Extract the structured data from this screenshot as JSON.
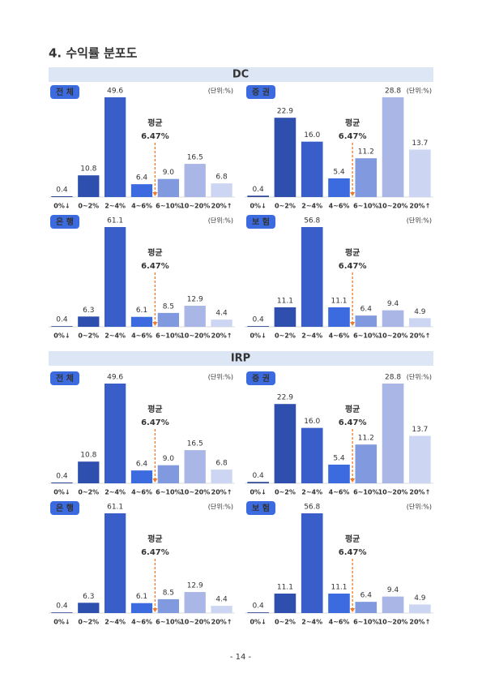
{
  "heading": "4. 수익률 분포도",
  "sections": [
    {
      "title": "DC",
      "charts": [
        {
          "type": "bar",
          "label": "전 체",
          "unit": "(단위:%)",
          "annotation": [
            "평균",
            "6.47%"
          ],
          "categories": [
            "0%↓",
            "0~2%",
            "2~4%",
            "4~6%",
            "6~10%",
            "10~20%",
            "20%↑"
          ],
          "values": [
            0.4,
            10.8,
            49.6,
            6.4,
            9.0,
            16.5,
            6.8
          ],
          "value_labels": [
            "0.4",
            "10.8",
            "49.6",
            "6.4",
            "9.0",
            "16.5",
            "6.8"
          ],
          "colors": [
            "#2b4595",
            "#2f4fae",
            "#3a5ec9",
            "#3c6be0",
            "#8199de",
            "#aab6e6",
            "#ccd5f1"
          ]
        },
        {
          "type": "bar",
          "label": "증 권",
          "unit": "(단위:%)",
          "annotation": [
            "평균",
            "6.47%"
          ],
          "categories": [
            "0%↓",
            "0~2%",
            "2~4%",
            "4~6%",
            "6~10%",
            "10~20%",
            "20%↑"
          ],
          "values": [
            0.4,
            22.9,
            16.0,
            5.4,
            11.2,
            28.8,
            13.7
          ],
          "value_labels": [
            "0.4",
            "22.9",
            "16.0",
            "5.4",
            "11.2",
            "28.8",
            "13.7"
          ],
          "colors": [
            "#2b4595",
            "#2f4fae",
            "#3a5ec9",
            "#3c6be0",
            "#8199de",
            "#aab6e6",
            "#ccd5f1"
          ]
        },
        {
          "type": "bar",
          "label": "은 행",
          "unit": "(단위:%)",
          "annotation": [
            "평균",
            "6.47%"
          ],
          "categories": [
            "0%↓",
            "0~2%",
            "2~4%",
            "4~6%",
            "6~10%",
            "10~20%",
            "20%↑"
          ],
          "values": [
            0.4,
            6.3,
            61.1,
            6.1,
            8.5,
            12.9,
            4.4
          ],
          "value_labels": [
            "0.4",
            "6.3",
            "61.1",
            "6.1",
            "8.5",
            "12.9",
            "4.4"
          ],
          "colors": [
            "#2b4595",
            "#2f4fae",
            "#3a5ec9",
            "#3c6be0",
            "#8199de",
            "#aab6e6",
            "#ccd5f1"
          ]
        },
        {
          "type": "bar",
          "label": "보 험",
          "unit": "(단위:%)",
          "annotation": [
            "평균",
            "6.47%"
          ],
          "categories": [
            "0%↓",
            "0~2%",
            "2~4%",
            "4~6%",
            "6~10%",
            "10~20%",
            "20%↑"
          ],
          "values": [
            0.4,
            11.1,
            56.8,
            11.1,
            6.4,
            9.4,
            4.9
          ],
          "value_labels": [
            "0.4",
            "11.1",
            "56.8",
            "11.1",
            "6.4",
            "9.4",
            "4.9"
          ],
          "colors": [
            "#2b4595",
            "#2f4fae",
            "#3a5ec9",
            "#3c6be0",
            "#8199de",
            "#aab6e6",
            "#ccd5f1"
          ]
        }
      ]
    },
    {
      "title": "IRP",
      "charts": [
        {
          "type": "bar",
          "label": "전 체",
          "unit": "(단위:%)",
          "annotation": [
            "평균",
            "6.47%"
          ],
          "categories": [
            "0%↓",
            "0~2%",
            "2~4%",
            "4~6%",
            "6~10%",
            "10~20%",
            "20%↑"
          ],
          "values": [
            0.4,
            10.8,
            49.6,
            6.4,
            9.0,
            16.5,
            6.8
          ],
          "value_labels": [
            "0.4",
            "10.8",
            "49.6",
            "6.4",
            "9.0",
            "16.5",
            "6.8"
          ],
          "colors": [
            "#2b4595",
            "#2f4fae",
            "#3a5ec9",
            "#3c6be0",
            "#8199de",
            "#aab6e6",
            "#ccd5f1"
          ]
        },
        {
          "type": "bar",
          "label": "증 권",
          "unit": "(단위:%)",
          "annotation": [
            "평균",
            "6.47%"
          ],
          "categories": [
            "0%↓",
            "0~2%",
            "2~4%",
            "4~6%",
            "6~10%",
            "10~20%",
            "20%↑"
          ],
          "values": [
            0.4,
            22.9,
            16.0,
            5.4,
            11.2,
            28.8,
            13.7
          ],
          "value_labels": [
            "0.4",
            "22.9",
            "16.0",
            "5.4",
            "11.2",
            "28.8",
            "13.7"
          ],
          "colors": [
            "#2b4595",
            "#2f4fae",
            "#3a5ec9",
            "#3c6be0",
            "#8199de",
            "#aab6e6",
            "#ccd5f1"
          ]
        },
        {
          "type": "bar",
          "label": "은 행",
          "unit": "(단위:%)",
          "annotation": [
            "평균",
            "6.47%"
          ],
          "categories": [
            "0%↓",
            "0~2%",
            "2~4%",
            "4~6%",
            "6~10%",
            "10~20%",
            "20%↑"
          ],
          "values": [
            0.4,
            6.3,
            61.1,
            6.1,
            8.5,
            12.9,
            4.4
          ],
          "value_labels": [
            "0.4",
            "6.3",
            "61.1",
            "6.1",
            "8.5",
            "12.9",
            "4.4"
          ],
          "colors": [
            "#2b4595",
            "#2f4fae",
            "#3a5ec9",
            "#3c6be0",
            "#8199de",
            "#aab6e6",
            "#ccd5f1"
          ]
        },
        {
          "type": "bar",
          "label": "보 험",
          "unit": "(단위:%)",
          "annotation": [
            "평균",
            "6.47%"
          ],
          "categories": [
            "0%↓",
            "0~2%",
            "2~4%",
            "4~6%",
            "6~10%",
            "10~20%",
            "20%↑"
          ],
          "values": [
            0.4,
            11.1,
            56.8,
            11.1,
            6.4,
            9.4,
            4.9
          ],
          "value_labels": [
            "0.4",
            "11.1",
            "56.8",
            "11.1",
            "6.4",
            "9.4",
            "4.9"
          ],
          "colors": [
            "#2b4595",
            "#2f4fae",
            "#3a5ec9",
            "#3c6be0",
            "#8199de",
            "#aab6e6",
            "#ccd5f1"
          ]
        }
      ]
    }
  ],
  "footer": "- 14 -"
}
